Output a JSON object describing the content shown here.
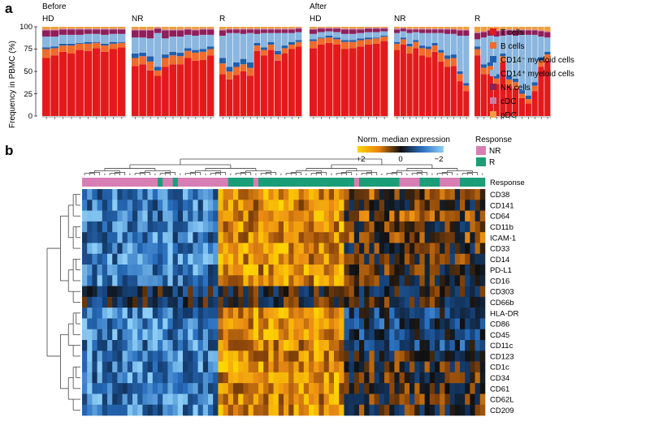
{
  "panel_a": {
    "letter": "a",
    "time_labels": [
      "Before",
      "After"
    ],
    "group_labels": [
      "HD",
      "NR",
      "R",
      "HD",
      "NR",
      "R"
    ],
    "y_axis_label": "Frequency in PBMC (%)",
    "y_ticks": [
      "0",
      "25",
      "50",
      "75",
      "100"
    ],
    "legend": [
      {
        "label": "T cells",
        "color": "#e31a1c"
      },
      {
        "label": "B cells",
        "color": "#ef6c2c"
      },
      {
        "label": "CD14⁻ myeloid cells",
        "color": "#1f5fae"
      },
      {
        "label": "CD14⁺ myeloid cells",
        "color": "#8ab6df"
      },
      {
        "label": "NK cells",
        "color": "#8e1f5b"
      },
      {
        "label": "cDC",
        "color": "#c77fa8"
      },
      {
        "label": "pDC",
        "color": "#f0a040"
      }
    ]
  },
  "panel_b": {
    "letter": "b",
    "colorbar_title": "Norm. median expression",
    "colorbar_ticks": [
      "+2",
      "0",
      "−2"
    ],
    "response_legend_title": "Response",
    "response_legend": [
      {
        "label": "NR",
        "color": "#d77fb4"
      },
      {
        "label": "R",
        "color": "#1b9e77"
      }
    ],
    "annotation_row_label": "Response",
    "markers": [
      "CD38",
      "CD141",
      "CD64",
      "CD11b",
      "ICAM-1",
      "CD33",
      "CD14",
      "PD-L1",
      "CD16",
      "CD303",
      "CD66b",
      "HLA-DR",
      "CD86",
      "CD45",
      "CD11c",
      "CD123",
      "CD1c",
      "CD34",
      "CD61",
      "CD62L",
      "CD209"
    ]
  },
  "chart_data": [
    {
      "type": "bar",
      "stacked": true,
      "title": "",
      "xlabel": "",
      "ylabel": "Frequency in PBMC (%)",
      "ylim": [
        0,
        100
      ],
      "series_order": [
        "T cells",
        "B cells",
        "CD14⁻ myeloid cells",
        "CD14⁺ myeloid cells",
        "NK cells",
        "cDC",
        "pDC"
      ],
      "groups": [
        {
          "time": "Before",
          "group": "HD",
          "samples": [
            [
              65,
              10,
              2,
              12,
              7,
              1,
              3
            ],
            [
              68,
              8,
              2,
              11,
              7,
              1,
              3
            ],
            [
              72,
              7,
              2,
              10,
              6,
              1,
              2
            ],
            [
              70,
              9,
              2,
              10,
              6,
              1,
              2
            ],
            [
              74,
              7,
              1,
              9,
              6,
              1,
              2
            ],
            [
              73,
              8,
              2,
              9,
              5,
              1,
              2
            ],
            [
              76,
              6,
              1,
              9,
              5,
              1,
              2
            ],
            [
              72,
              7,
              2,
              10,
              6,
              1,
              2
            ],
            [
              75,
              6,
              2,
              9,
              5,
              1,
              2
            ],
            [
              77,
              5,
              1,
              9,
              5,
              1,
              2
            ]
          ]
        },
        {
          "time": "Before",
          "group": "NR",
          "samples": [
            [
              56,
              9,
              5,
              18,
              8,
              1,
              3
            ],
            [
              58,
              9,
              4,
              17,
              8,
              1,
              3
            ],
            [
              51,
              10,
              6,
              20,
              9,
              1,
              3
            ],
            [
              45,
              6,
              4,
              38,
              5,
              1,
              1
            ],
            [
              55,
              10,
              4,
              18,
              9,
              1,
              3
            ],
            [
              58,
              10,
              4,
              17,
              7,
              1,
              3
            ],
            [
              58,
              9,
              4,
              18,
              7,
              1,
              3
            ],
            [
              65,
              8,
              3,
              15,
              6,
              1,
              2
            ],
            [
              62,
              9,
              3,
              16,
              6,
              1,
              3
            ],
            [
              63,
              9,
              3,
              16,
              6,
              1,
              2
            ],
            [
              68,
              7,
              3,
              13,
              6,
              1,
              2
            ]
          ]
        },
        {
          "time": "Before",
          "group": "R",
          "samples": [
            [
              47,
              12,
              6,
              25,
              6,
              1,
              3
            ],
            [
              41,
              9,
              5,
              38,
              4,
              1,
              2
            ],
            [
              46,
              9,
              5,
              33,
              4,
              1,
              2
            ],
            [
              50,
              8,
              6,
              28,
              5,
              1,
              2
            ],
            [
              45,
              9,
              6,
              33,
              4,
              1,
              2
            ],
            [
              73,
              6,
              3,
              10,
              5,
              1,
              2
            ],
            [
              68,
              6,
              3,
              16,
              4,
              1,
              2
            ],
            [
              74,
              6,
              3,
              10,
              4,
              1,
              2
            ],
            [
              62,
              7,
              4,
              20,
              4,
              1,
              2
            ],
            [
              70,
              6,
              3,
              14,
              4,
              1,
              2
            ],
            [
              75,
              5,
              3,
              10,
              4,
              1,
              2
            ],
            [
              78,
              5,
              2,
              9,
              4,
              1,
              1
            ]
          ]
        },
        {
          "time": "After",
          "group": "HD",
          "samples": [
            [
              76,
              8,
              2,
              6,
              5,
              1,
              2
            ],
            [
              80,
              7,
              1,
              6,
              4,
              1,
              1
            ],
            [
              82,
              6,
              2,
              5,
              3,
              1,
              1
            ],
            [
              80,
              6,
              2,
              6,
              4,
              1,
              1
            ],
            [
              75,
              8,
              2,
              7,
              5,
              1,
              2
            ],
            [
              76,
              7,
              2,
              7,
              5,
              1,
              2
            ],
            [
              78,
              7,
              2,
              6,
              4,
              1,
              2
            ],
            [
              80,
              6,
              2,
              6,
              4,
              1,
              1
            ],
            [
              81,
              6,
              1,
              6,
              4,
              1,
              1
            ],
            [
              84,
              5,
              1,
              5,
              3,
              1,
              1
            ]
          ]
        },
        {
          "time": "After",
          "group": "NR",
          "samples": [
            [
              74,
              7,
              2,
              10,
              4,
              1,
              2
            ],
            [
              80,
              6,
              2,
              7,
              3,
              1,
              1
            ],
            [
              70,
              8,
              3,
              12,
              4,
              1,
              2
            ],
            [
              76,
              7,
              2,
              9,
              3,
              1,
              2
            ],
            [
              68,
              8,
              3,
              14,
              4,
              1,
              2
            ],
            [
              66,
              9,
              3,
              15,
              4,
              1,
              2
            ],
            [
              72,
              7,
              3,
              11,
              4,
              1,
              2
            ],
            [
              61,
              10,
              3,
              19,
              4,
              1,
              2
            ],
            [
              55,
              9,
              4,
              24,
              5,
              1,
              2
            ],
            [
              56,
              9,
              4,
              23,
              5,
              1,
              2
            ],
            [
              39,
              8,
              3,
              40,
              6,
              1,
              3
            ],
            [
              28,
              6,
              3,
              53,
              6,
              1,
              3
            ]
          ]
        },
        {
          "time": "After",
          "group": "R",
          "samples": [
            [
              68,
              7,
              3,
              8,
              7,
              1,
              6
            ],
            [
              47,
              7,
              4,
              30,
              6,
              1,
              5
            ],
            [
              47,
              9,
              4,
              30,
              6,
              1,
              3
            ],
            [
              36,
              6,
              5,
              42,
              6,
              1,
              4
            ],
            [
              60,
              7,
              3,
              20,
              6,
              1,
              3
            ],
            [
              34,
              7,
              4,
              46,
              5,
              1,
              3
            ],
            [
              31,
              7,
              4,
              48,
              6,
              1,
              3
            ],
            [
              20,
              5,
              4,
              62,
              5,
              1,
              3
            ],
            [
              14,
              5,
              4,
              68,
              5,
              1,
              3
            ],
            [
              28,
              6,
              4,
              53,
              5,
              1,
              3
            ],
            [
              55,
              7,
              4,
              23,
              6,
              1,
              4
            ],
            [
              62,
              7,
              3,
              16,
              6,
              1,
              5
            ]
          ]
        }
      ]
    },
    {
      "type": "heatmap",
      "title": "",
      "value_range": [
        -2,
        2
      ],
      "x_response": [
        "NR",
        "NR",
        "NR",
        "NR",
        "NR",
        "NR",
        "NR",
        "NR",
        "NR",
        "NR",
        "NR",
        "NR",
        "NR",
        "NR",
        "NR",
        "R",
        "NR",
        "NR",
        "R",
        "NR",
        "NR",
        "NR",
        "NR",
        "NR",
        "NR",
        "NR",
        "NR",
        "NR",
        "NR",
        "R",
        "R",
        "R",
        "R",
        "R",
        "NR",
        "R",
        "R",
        "R",
        "R",
        "R",
        "R",
        "R",
        "R",
        "R",
        "R",
        "R",
        "R",
        "R",
        "R",
        "R",
        "R",
        "R",
        "R",
        "R",
        "NR",
        "R",
        "R",
        "R",
        "R",
        "R",
        "R",
        "R",
        "R",
        "NR",
        "NR",
        "NR",
        "NR",
        "R",
        "R",
        "R",
        "R",
        "NR",
        "NR",
        "NR",
        "NR",
        "R",
        "R",
        "R",
        "R",
        "R"
      ],
      "y": [
        "CD38",
        "CD141",
        "CD64",
        "CD11b",
        "ICAM-1",
        "CD33",
        "CD14",
        "PD-L1",
        "CD16",
        "CD303",
        "CD66b",
        "HLA-DR",
        "CD86",
        "CD45",
        "CD11c",
        "CD123",
        "CD1c",
        "CD34",
        "CD61",
        "CD62L",
        "CD209"
      ]
    }
  ]
}
